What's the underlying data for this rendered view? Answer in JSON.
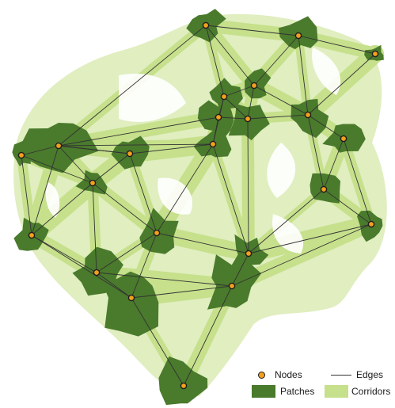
{
  "legend": {
    "nodes_label": "Nodes",
    "edges_label": "Edges",
    "patches_label": "Patches",
    "corridors_label": "Corridors"
  },
  "colors": {
    "patch": "#4a7a2c",
    "corridor": "#c6e08c",
    "edge": "#333333",
    "node_fill": "#f2a01e",
    "node_stroke": "#1e1e1e",
    "background": "#ffffff"
  },
  "network": {
    "node_count": 25,
    "edge_count": 54
  }
}
